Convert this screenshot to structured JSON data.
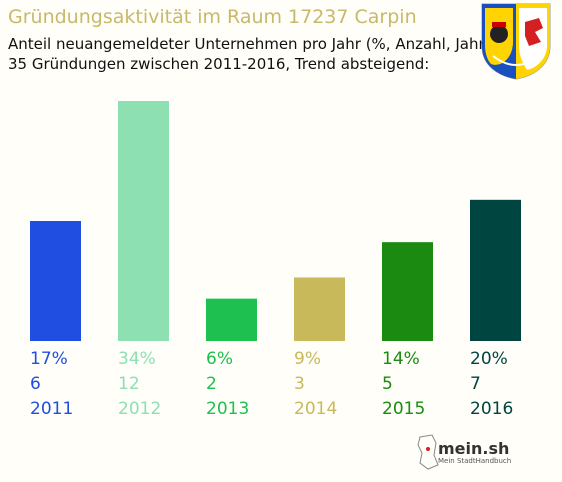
{
  "header": {
    "title": "Gründungsaktivität im Raum 17237 Carpin",
    "subtitle_line1": "Anteil neuangemeldeter Unternehmen pro Jahr (%, Anzahl, Jahr)",
    "subtitle_line2": "35 Gründungen zwischen 2011-2016, Trend absteigend:"
  },
  "crest": {
    "icon": "coat-of-arms-icon",
    "colors": [
      "#1a4fbf",
      "#ffd400",
      "#ffffff",
      "#d42020"
    ]
  },
  "logo": {
    "text": "mein.sh",
    "subtext": "Mein StadtHandbuch",
    "icon": "germany-map-icon"
  },
  "chart_data": {
    "type": "bar",
    "categories": [
      "2011",
      "2012",
      "2013",
      "2014",
      "2015",
      "2016"
    ],
    "values": [
      17,
      34,
      6,
      9,
      14,
      20
    ],
    "percent_labels": [
      "17%",
      "34%",
      "6%",
      "9%",
      "14%",
      "20%"
    ],
    "counts": [
      "6",
      "12",
      "2",
      "3",
      "5",
      "7"
    ],
    "colors": [
      "#1f4ee0",
      "#8de0b2",
      "#1ec050",
      "#c8b95a",
      "#1a8a10",
      "#004540"
    ],
    "ylim": [
      0,
      34
    ]
  }
}
